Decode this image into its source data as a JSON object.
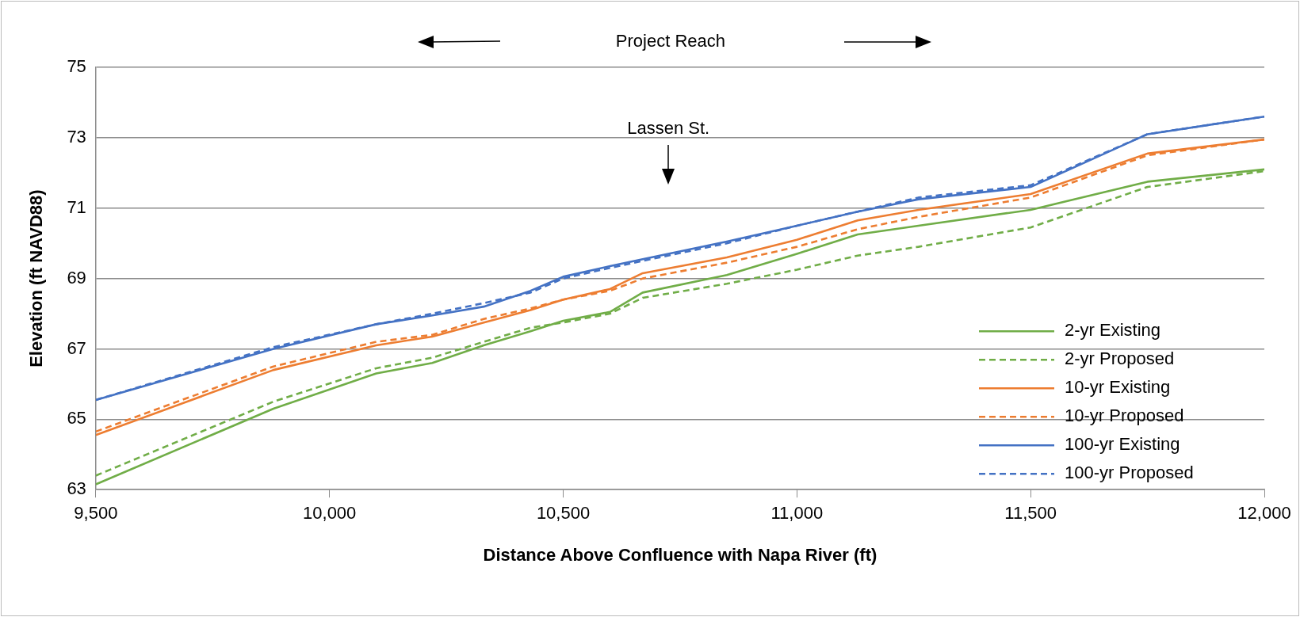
{
  "chart_data": {
    "type": "line",
    "xlabel": "Distance Above Confluence with Napa River (ft)",
    "ylabel": "Elevation (ft NAVD88)",
    "x": [
      9500,
      9880,
      10100,
      10220,
      10330,
      10430,
      10500,
      10600,
      10670,
      10850,
      11000,
      11130,
      11260,
      11500,
      11750,
      12000
    ],
    "series": [
      {
        "name": "2-yr Existing",
        "color": "#70ad47",
        "line_style": "solid",
        "values": [
          63.15,
          65.3,
          66.3,
          66.6,
          67.1,
          67.5,
          67.8,
          68.05,
          68.6,
          69.1,
          69.7,
          70.25,
          70.5,
          70.95,
          71.75,
          72.1
        ]
      },
      {
        "name": "2-yr Proposed",
        "color": "#70ad47",
        "line_style": "dashed",
        "values": [
          63.4,
          65.5,
          66.45,
          66.75,
          67.2,
          67.6,
          67.75,
          68.0,
          68.45,
          68.85,
          69.25,
          69.65,
          69.9,
          70.45,
          71.6,
          72.05
        ]
      },
      {
        "name": "10-yr Existing",
        "color": "#ed7d31",
        "line_style": "solid",
        "values": [
          64.55,
          66.4,
          67.1,
          67.35,
          67.75,
          68.1,
          68.4,
          68.7,
          69.15,
          69.6,
          70.1,
          70.65,
          70.95,
          71.4,
          72.55,
          72.95
        ]
      },
      {
        "name": "10-yr Proposed",
        "color": "#ed7d31",
        "line_style": "dashed",
        "values": [
          64.65,
          66.5,
          67.2,
          67.4,
          67.85,
          68.15,
          68.4,
          68.65,
          69.0,
          69.45,
          69.9,
          70.4,
          70.75,
          71.3,
          72.5,
          72.95
        ]
      },
      {
        "name": "100-yr Existing",
        "color": "#4472c4",
        "line_style": "solid",
        "values": [
          65.55,
          67.0,
          67.7,
          67.95,
          68.2,
          68.65,
          69.05,
          69.35,
          69.55,
          70.05,
          70.5,
          70.9,
          71.25,
          71.6,
          73.1,
          73.6
        ]
      },
      {
        "name": "100-yr Proposed",
        "color": "#4472c4",
        "line_style": "dashed",
        "values": [
          65.55,
          67.05,
          67.7,
          68.0,
          68.3,
          68.6,
          69.0,
          69.3,
          69.5,
          70.0,
          70.5,
          70.9,
          71.3,
          71.65,
          73.1,
          73.6
        ]
      }
    ],
    "xlim": [
      9500,
      12000
    ],
    "xticks": [
      {
        "value": 9500,
        "label": "9,500"
      },
      {
        "value": 10000,
        "label": "10,000"
      },
      {
        "value": 10500,
        "label": "10,500"
      },
      {
        "value": 11000,
        "label": "11,000"
      },
      {
        "value": 11500,
        "label": "11,500"
      },
      {
        "value": 12000,
        "label": "12,000"
      }
    ],
    "ylim": [
      63,
      75
    ],
    "yticks": [
      63,
      65,
      67,
      69,
      71,
      73,
      75
    ],
    "grid": "y",
    "legend": "bottom right",
    "marker": "none",
    "annotations": [
      "Project Reach",
      "Lassen St."
    ]
  }
}
